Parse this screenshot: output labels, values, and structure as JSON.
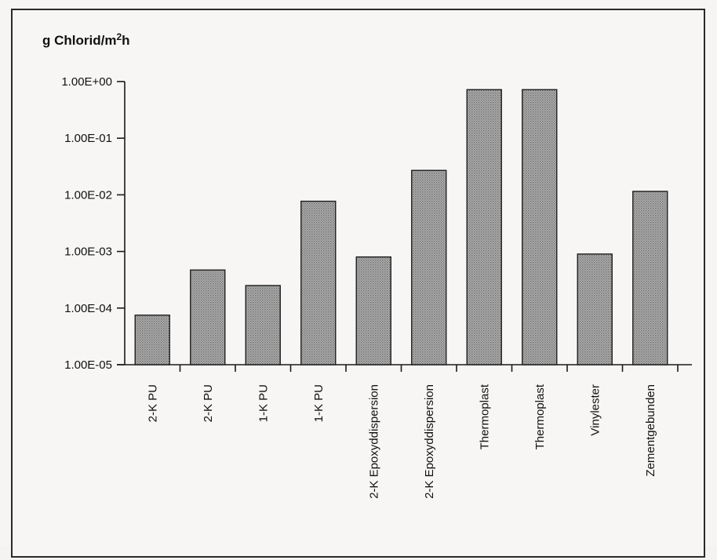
{
  "chart_data": {
    "type": "bar",
    "ylabel": "g Chlorid/m",
    "ylabel_sup": "2",
    "ylabel_suffix": "h",
    "scale": "log",
    "ylim": [
      1e-05,
      1
    ],
    "yticks": [
      "1.00E-05",
      "1.00E-04",
      "1.00E-03",
      "1.00E-02",
      "1.00E-01",
      "1.00E+00"
    ],
    "categories": [
      "2-K PU",
      "2-K PU",
      "1-K PU",
      "1-K PU",
      "2-K Epoxyddispersion",
      "2-K Epoxyddispersion",
      "Thermoplast",
      "Thermoplast",
      "Vinylester",
      "Zementgebunden"
    ],
    "values": [
      7.5e-05,
      0.00047,
      0.00025,
      0.0077,
      0.0008,
      0.027,
      0.72,
      0.72,
      0.0009,
      0.0115
    ],
    "grid": false,
    "legend": "none",
    "bar_fill": "#9a9a9a",
    "bar_stroke": "#1e1e1e"
  }
}
